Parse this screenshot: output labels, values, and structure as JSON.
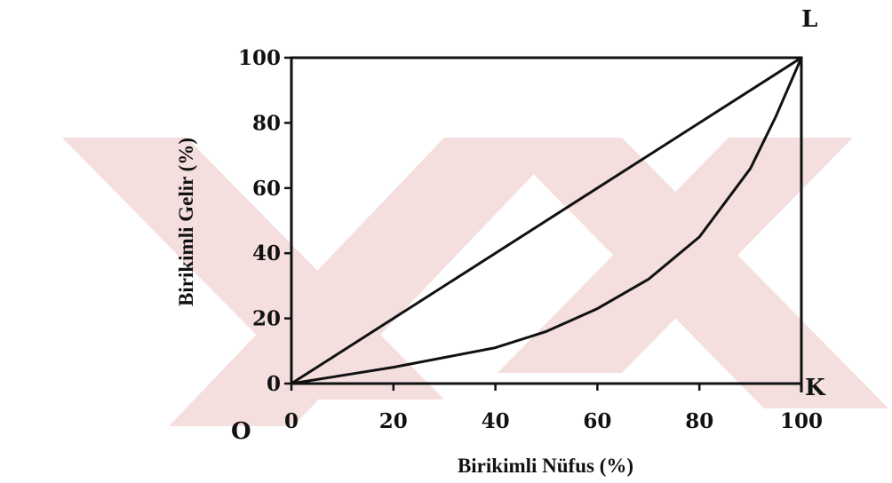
{
  "chart_data": {
    "type": "line",
    "title": "",
    "xlabel": "Birikimli Nüfus (%)",
    "ylabel": "Birikimli Gelir (%)",
    "xlim": [
      0,
      100
    ],
    "ylim": [
      0,
      100
    ],
    "x_ticks": [
      "0",
      "20",
      "40",
      "60",
      "80",
      "100"
    ],
    "y_ticks": [
      "0",
      "20",
      "40",
      "60",
      "80",
      "100"
    ],
    "grid": false,
    "legend": "none",
    "series": [
      {
        "x": [
          0,
          100
        ],
        "y": [
          0,
          100
        ]
      },
      {
        "x": [
          0,
          10,
          20,
          30,
          40,
          50,
          60,
          70,
          80,
          90,
          95,
          100
        ],
        "y": [
          0,
          2.5,
          5,
          8,
          11,
          16,
          23,
          32,
          45,
          66,
          82,
          100
        ]
      }
    ],
    "annotations": {
      "origin": "O",
      "corner_top_right": "L",
      "corner_bottom_right": "K"
    }
  },
  "watermark": {
    "color": "#f4dede"
  }
}
